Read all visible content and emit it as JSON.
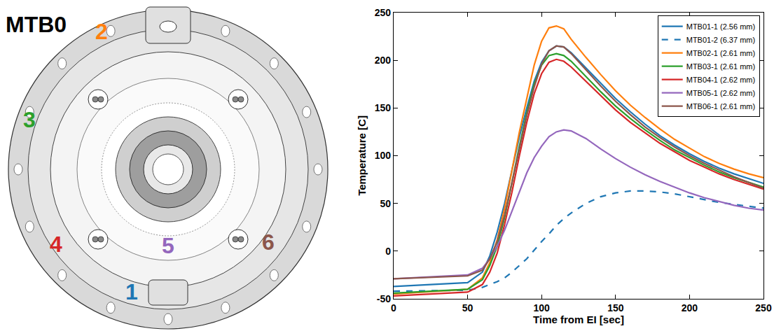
{
  "diagram": {
    "title": "MTB0",
    "labels": [
      {
        "text": "1",
        "color": "#1f77b4"
      },
      {
        "text": "2",
        "color": "#ff7f0e"
      },
      {
        "text": "3",
        "color": "#2ca02c"
      },
      {
        "text": "4",
        "color": "#d62728"
      },
      {
        "text": "5",
        "color": "#9467bd"
      },
      {
        "text": "6",
        "color": "#8c564b"
      }
    ]
  },
  "chart_data": {
    "type": "line",
    "x_label": "Time from EI [sec]",
    "y_label": "Temperature [C]",
    "x": [
      0,
      50,
      60,
      65,
      70,
      75,
      80,
      85,
      90,
      95,
      100,
      105,
      110,
      115,
      120,
      130,
      140,
      150,
      160,
      170,
      180,
      190,
      200,
      210,
      220,
      230,
      240,
      250
    ],
    "series": [
      {
        "name": "MTB01-1 (2.56 mm)",
        "color": "#1f77b4",
        "line_style": "solid",
        "values": [
          -37,
          -33,
          -22,
          -5,
          20,
          50,
          85,
          120,
          150,
          178,
          198,
          210,
          215,
          214,
          208,
          192,
          176,
          160,
          146,
          133,
          121,
          111,
          102,
          94,
          87,
          81,
          76,
          71
        ]
      },
      {
        "name": "MTB01-2 (6.37 mm)",
        "color": "#1f77b4",
        "line_style": "dashed",
        "values": [
          -42,
          -41,
          -38,
          -35,
          -32,
          -28,
          -22,
          -15,
          -8,
          1,
          10,
          18,
          27,
          34,
          40,
          50,
          57,
          61,
          63,
          63,
          62,
          60,
          57,
          54,
          51,
          49,
          47,
          45
        ]
      },
      {
        "name": "MTB02-1 (2.61 mm)",
        "color": "#ff7f0e",
        "line_style": "solid",
        "values": [
          -45,
          -40,
          -28,
          -12,
          12,
          45,
          85,
          125,
          160,
          195,
          220,
          234,
          236,
          233,
          222,
          203,
          185,
          168,
          153,
          140,
          128,
          117,
          108,
          99,
          92,
          86,
          81,
          77
        ]
      },
      {
        "name": "MTB03-1 (2.61 mm)",
        "color": "#2ca02c",
        "line_style": "solid",
        "values": [
          -44,
          -40,
          -30,
          -15,
          5,
          35,
          72,
          110,
          145,
          175,
          195,
          205,
          207,
          205,
          199,
          183,
          167,
          152,
          139,
          127,
          116,
          106,
          98,
          90,
          83,
          77,
          72,
          67
        ]
      },
      {
        "name": "MTB04-1 (2.62 mm)",
        "color": "#d62728",
        "line_style": "solid",
        "values": [
          -47,
          -43,
          -35,
          -22,
          -2,
          28,
          62,
          100,
          135,
          165,
          186,
          198,
          201,
          199,
          193,
          178,
          163,
          148,
          135,
          124,
          113,
          104,
          95,
          88,
          81,
          75,
          70,
          65
        ]
      },
      {
        "name": "MTB05-1 (2.62 mm)",
        "color": "#9467bd",
        "line_style": "solid",
        "values": [
          -29,
          -25,
          -18,
          -8,
          5,
          22,
          42,
          62,
          82,
          98,
          110,
          120,
          125,
          127,
          126,
          118,
          107,
          97,
          88,
          80,
          73,
          67,
          61,
          56,
          52,
          48,
          45,
          43
        ]
      },
      {
        "name": "MTB06-1 (2.61 mm)",
        "color": "#8c564b",
        "line_style": "solid",
        "values": [
          -29,
          -26,
          -20,
          -8,
          10,
          38,
          72,
          108,
          142,
          172,
          196,
          210,
          215,
          214,
          207,
          190,
          173,
          157,
          143,
          130,
          119,
          109,
          100,
          92,
          85,
          78,
          72,
          66
        ]
      }
    ],
    "xlim": [
      0,
      250
    ],
    "xticks": [
      0,
      50,
      100,
      150,
      200,
      250
    ],
    "ylim": [
      -50,
      250
    ],
    "yticks": [
      -50,
      0,
      50,
      100,
      150,
      200,
      250
    ],
    "grid": false,
    "legend": "top-right"
  }
}
